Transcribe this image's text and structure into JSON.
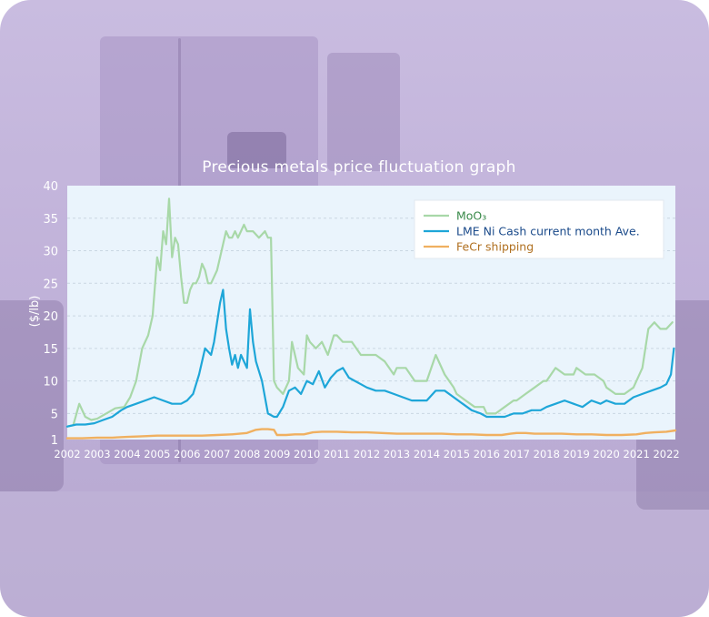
{
  "chart_data": {
    "type": "line",
    "title": "Precious metals price fluctuation graph",
    "ylabel": "($/lb)",
    "xlabel": "",
    "ylim": [
      1,
      40
    ],
    "xlim": [
      2002,
      2022.3
    ],
    "yticks": [
      1,
      5,
      10,
      15,
      20,
      25,
      30,
      35,
      40
    ],
    "xticks": [
      "2002",
      "2003",
      "2004",
      "2005",
      "2006",
      "2007",
      "2008",
      "2009",
      "2010",
      "2011",
      "2012",
      "2013",
      "2014",
      "2015",
      "2016",
      "2017",
      "2018",
      "2019",
      "2020",
      "2021",
      "2022"
    ],
    "grid": true,
    "legend_position": "top-right",
    "series": [
      {
        "name": "MoO₃",
        "color": "#a8d8a8",
        "x": [
          2002.0,
          2002.2,
          2002.4,
          2002.6,
          2002.8,
          2003.0,
          2003.3,
          2003.6,
          2003.9,
          2004.1,
          2004.3,
          2004.5,
          2004.7,
          2004.85,
          2005.0,
          2005.1,
          2005.2,
          2005.3,
          2005.4,
          2005.5,
          2005.6,
          2005.7,
          2005.8,
          2005.9,
          2006.0,
          2006.1,
          2006.2,
          2006.3,
          2006.4,
          2006.5,
          2006.6,
          2006.7,
          2006.8,
          2006.9,
          2007.0,
          2007.1,
          2007.2,
          2007.3,
          2007.4,
          2007.5,
          2007.6,
          2007.7,
          2007.8,
          2007.9,
          2008.0,
          2008.2,
          2008.4,
          2008.6,
          2008.7,
          2008.8,
          2008.9,
          2009.0,
          2009.2,
          2009.4,
          2009.5,
          2009.7,
          2009.9,
          2010.0,
          2010.1,
          2010.3,
          2010.5,
          2010.7,
          2010.9,
          2011.0,
          2011.2,
          2011.5,
          2011.8,
          2012.0,
          2012.3,
          2012.6,
          2012.9,
          2013.0,
          2013.3,
          2013.6,
          2013.9,
          2014.0,
          2014.3,
          2014.6,
          2014.9,
          2015.0,
          2015.3,
          2015.6,
          2015.9,
          2016.0,
          2016.3,
          2016.6,
          2016.9,
          2017.0,
          2017.3,
          2017.6,
          2017.9,
          2018.0,
          2018.3,
          2018.6,
          2018.9,
          2019.0,
          2019.3,
          2019.6,
          2019.9,
          2020.0,
          2020.3,
          2020.6,
          2020.9,
          2021.0,
          2021.2,
          2021.4,
          2021.6,
          2021.8,
          2022.0,
          2022.2
        ],
        "y": [
          3.0,
          3.2,
          6.5,
          4.5,
          4.0,
          4.2,
          5.0,
          5.8,
          6.0,
          7.5,
          10,
          15,
          17,
          20,
          29,
          27,
          33,
          31,
          38,
          29,
          32,
          31,
          26,
          22,
          22,
          24,
          25,
          25,
          26,
          28,
          27,
          25,
          25,
          26,
          27,
          29,
          31,
          33,
          32,
          32,
          33,
          32,
          33,
          34,
          33,
          33,
          32,
          33,
          32,
          32,
          10,
          9,
          8,
          10,
          16,
          12,
          11,
          17,
          16,
          15,
          16,
          14,
          17,
          17,
          16,
          16,
          14,
          14,
          14,
          13,
          11,
          12,
          12,
          10,
          10,
          10,
          14,
          11,
          9,
          8,
          7,
          6,
          6,
          5,
          5,
          6,
          7,
          7,
          8,
          9,
          10,
          10,
          12,
          11,
          11,
          12,
          11,
          11,
          10,
          9,
          8,
          8,
          9,
          10,
          12,
          18,
          19,
          18,
          18,
          19
        ],
        "width": 2.2
      },
      {
        "name": "LME Ni Cash current month Ave.",
        "color": "#1ea6d8",
        "x": [
          2002.0,
          2002.3,
          2002.6,
          2002.9,
          2003.2,
          2003.5,
          2003.8,
          2004.0,
          2004.3,
          2004.6,
          2004.9,
          2005.2,
          2005.5,
          2005.8,
          2006.0,
          2006.2,
          2006.4,
          2006.6,
          2006.8,
          2006.9,
          2007.0,
          2007.1,
          2007.2,
          2007.3,
          2007.4,
          2007.5,
          2007.6,
          2007.7,
          2007.8,
          2007.9,
          2008.0,
          2008.1,
          2008.2,
          2008.3,
          2008.5,
          2008.7,
          2008.9,
          2009.0,
          2009.2,
          2009.4,
          2009.6,
          2009.8,
          2010.0,
          2010.2,
          2010.4,
          2010.6,
          2010.8,
          2011.0,
          2011.2,
          2011.4,
          2011.6,
          2011.8,
          2012.0,
          2012.3,
          2012.6,
          2012.9,
          2013.2,
          2013.5,
          2013.8,
          2014.0,
          2014.3,
          2014.6,
          2014.9,
          2015.2,
          2015.5,
          2015.8,
          2016.0,
          2016.3,
          2016.6,
          2016.9,
          2017.2,
          2017.5,
          2017.8,
          2018.0,
          2018.3,
          2018.6,
          2018.9,
          2019.2,
          2019.5,
          2019.8,
          2020.0,
          2020.3,
          2020.6,
          2020.9,
          2021.2,
          2021.5,
          2021.8,
          2022.0,
          2022.15,
          2022.25
        ],
        "y": [
          3.0,
          3.3,
          3.3,
          3.5,
          4.0,
          4.5,
          5.5,
          6.0,
          6.5,
          7.0,
          7.5,
          7.0,
          6.5,
          6.5,
          7.0,
          8.0,
          11.0,
          15.0,
          14.0,
          16.0,
          19.0,
          22.0,
          24.0,
          18.0,
          15.0,
          12.5,
          14.0,
          12.0,
          14.0,
          13.0,
          12.0,
          21.0,
          16.0,
          13.0,
          10.0,
          5.0,
          4.5,
          4.5,
          6.0,
          8.5,
          9.0,
          8.0,
          10.0,
          9.5,
          11.5,
          9.0,
          10.5,
          11.5,
          12.0,
          10.5,
          10.0,
          9.5,
          9.0,
          8.5,
          8.5,
          8.0,
          7.5,
          7.0,
          7.0,
          7.0,
          8.5,
          8.5,
          7.5,
          6.5,
          5.5,
          5.0,
          4.5,
          4.5,
          4.5,
          5.0,
          5.0,
          5.5,
          5.5,
          6.0,
          6.5,
          7.0,
          6.5,
          6.0,
          7.0,
          6.5,
          7.0,
          6.5,
          6.5,
          7.5,
          8.0,
          8.5,
          9.0,
          9.5,
          11.0,
          15.0
        ],
        "width": 2.2
      },
      {
        "name": "FeCr shipping",
        "color": "#f0b060",
        "x": [
          2002.0,
          2002.5,
          2003.0,
          2003.5,
          2004.0,
          2004.5,
          2005.0,
          2005.5,
          2006.0,
          2006.5,
          2007.0,
          2007.5,
          2008.0,
          2008.3,
          2008.5,
          2008.7,
          2008.9,
          2009.0,
          2009.3,
          2009.6,
          2009.9,
          2010.2,
          2010.5,
          2011.0,
          2011.5,
          2012.0,
          2012.5,
          2013.0,
          2013.5,
          2014.0,
          2014.5,
          2015.0,
          2015.5,
          2016.0,
          2016.5,
          2016.8,
          2017.0,
          2017.3,
          2017.6,
          2018.0,
          2018.5,
          2019.0,
          2019.5,
          2020.0,
          2020.5,
          2021.0,
          2021.3,
          2021.6,
          2022.0,
          2022.3
        ],
        "y": [
          1.2,
          1.2,
          1.3,
          1.3,
          1.4,
          1.5,
          1.6,
          1.6,
          1.6,
          1.6,
          1.7,
          1.8,
          2.0,
          2.5,
          2.6,
          2.6,
          2.5,
          1.7,
          1.7,
          1.8,
          1.8,
          2.1,
          2.2,
          2.2,
          2.1,
          2.1,
          2.0,
          1.9,
          1.9,
          1.9,
          1.9,
          1.8,
          1.8,
          1.7,
          1.7,
          1.9,
          2.0,
          2.0,
          1.9,
          1.9,
          1.9,
          1.8,
          1.8,
          1.7,
          1.7,
          1.8,
          2.0,
          2.1,
          2.2,
          2.4
        ],
        "width": 2.4
      }
    ]
  },
  "legend": {
    "moo3": "MoO₃",
    "ni": "LME Ni Cash current month Ave.",
    "fecr": "FeCr shipping",
    "moo3_text_color": "#3a8a4a",
    "ni_text_color": "#1a4a8a",
    "fecr_text_color": "#b07020"
  },
  "colors": {
    "plot_bg": "#eaf4fc",
    "grid": "#c9d6e2"
  }
}
